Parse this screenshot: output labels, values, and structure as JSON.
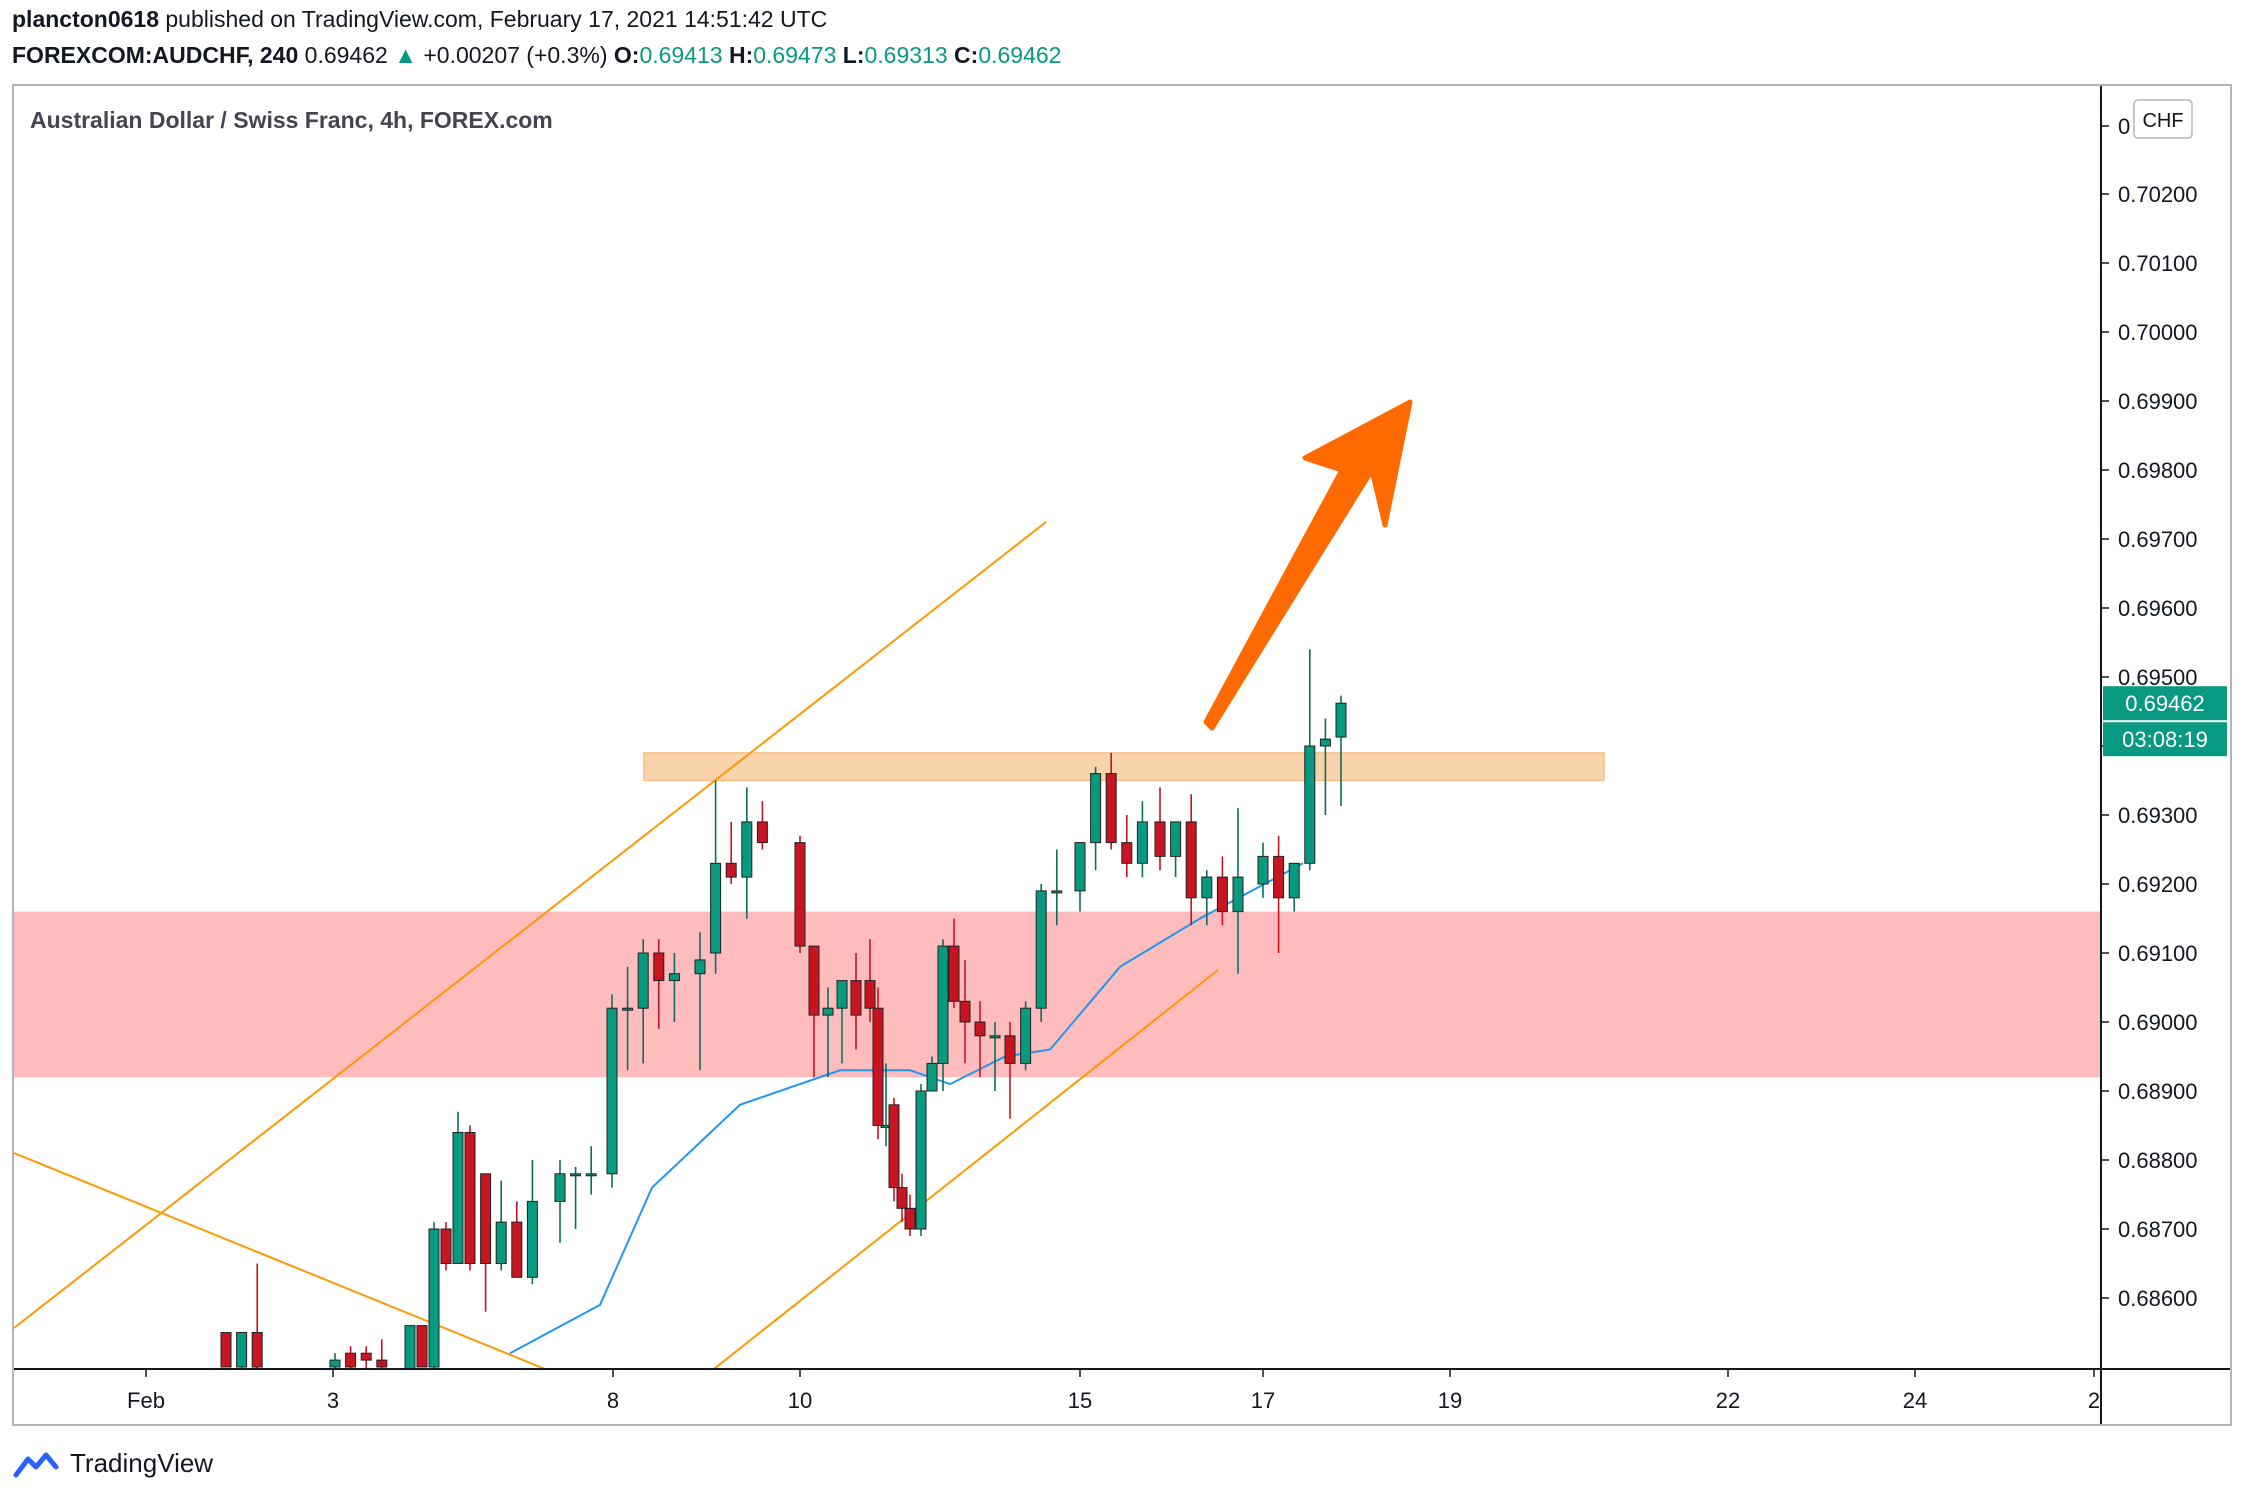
{
  "header": {
    "username": "plancton0618",
    "published_text": "published on TradingView.com, February 17, 2021 14:51:42 UTC",
    "symbol": "FOREXCOM:AUDCHF, 240",
    "last": "0.69462",
    "change_arrow": "▲",
    "change": "+0.00207 (+0.3%)",
    "o_label": "O:",
    "o_value": "0.69413",
    "h_label": "H:",
    "h_value": "0.69473",
    "l_label": "L:",
    "l_value": "0.69313",
    "c_label": "C:",
    "c_value": "0.69462"
  },
  "chart_title": "Australian Dollar / Swiss Franc, 4h, FOREX.com",
  "currency_badge": "CHF",
  "price_label": "0.69462",
  "countdown_label": "03:08:19",
  "footer_brand": "TradingView",
  "colors": {
    "up": "#089981",
    "down": "#c71521",
    "ma": "#2196f3",
    "channel": "#ff9800",
    "arrow": "#ff6a00",
    "resistance_zone": "#f9cfa3",
    "support_zone": "#ffbcbc"
  },
  "chart_data": {
    "type": "candlestick",
    "title": "Australian Dollar / Swiss Franc, 4h, FOREX.com",
    "ylim": [
      0.6851,
      0.7037
    ],
    "y_ticks": [
      "0.68600",
      "0.68700",
      "0.68800",
      "0.68900",
      "0.69000",
      "0.69100",
      "0.69200",
      "0.69300",
      "0.69400",
      "0.69500",
      "0.69600",
      "0.69700",
      "0.69800",
      "0.69900",
      "0.70000",
      "0.70100",
      "0.70200",
      "0"
    ],
    "x_ticks": [
      "Feb",
      "3",
      "8",
      "10",
      "15",
      "17",
      "19",
      "22",
      "24",
      "2"
    ],
    "candles": [
      {
        "date": "Feb 2",
        "o": 0.6855,
        "h": 0.6855,
        "l": 0.685,
        "c": 0.685
      },
      {
        "date": "Feb 2",
        "o": 0.685,
        "h": 0.6855,
        "l": 0.6849,
        "c": 0.6855
      },
      {
        "date": "Feb 2",
        "o": 0.6855,
        "h": 0.6865,
        "l": 0.6849,
        "c": 0.685
      },
      {
        "date": "Feb 3",
        "o": 0.685,
        "h": 0.6852,
        "l": 0.6849,
        "c": 0.6851
      },
      {
        "date": "Feb 3",
        "o": 0.6852,
        "h": 0.6853,
        "l": 0.6849,
        "c": 0.685
      },
      {
        "date": "Feb 3",
        "o": 0.6852,
        "h": 0.6853,
        "l": 0.6849,
        "c": 0.6851
      },
      {
        "date": "Feb 3",
        "o": 0.6851,
        "h": 0.6854,
        "l": 0.6849,
        "c": 0.685
      },
      {
        "date": "Feb 4",
        "o": 0.6849,
        "h": 0.6856,
        "l": 0.6849,
        "c": 0.6856
      },
      {
        "date": "Feb 4",
        "o": 0.6856,
        "h": 0.6856,
        "l": 0.685,
        "c": 0.685
      },
      {
        "date": "Feb 4",
        "o": 0.685,
        "h": 0.6871,
        "l": 0.6849,
        "c": 0.687
      },
      {
        "date": "Feb 4",
        "o": 0.687,
        "h": 0.6871,
        "l": 0.6864,
        "c": 0.6865
      },
      {
        "date": "Feb 4",
        "o": 0.6865,
        "h": 0.6887,
        "l": 0.6865,
        "c": 0.6884
      },
      {
        "date": "Feb 5",
        "o": 0.6884,
        "h": 0.6885,
        "l": 0.6864,
        "c": 0.6865
      },
      {
        "date": "Feb 5",
        "o": 0.6878,
        "h": 0.6878,
        "l": 0.6858,
        "c": 0.6865
      },
      {
        "date": "Feb 5",
        "o": 0.6865,
        "h": 0.6877,
        "l": 0.6864,
        "c": 0.6871
      },
      {
        "date": "Feb 5",
        "o": 0.6871,
        "h": 0.6874,
        "l": 0.6863,
        "c": 0.6863
      },
      {
        "date": "Feb 5",
        "o": 0.6863,
        "h": 0.688,
        "l": 0.6862,
        "c": 0.6874
      },
      {
        "date": "Feb 7",
        "o": 0.6874,
        "h": 0.688,
        "l": 0.6868,
        "c": 0.6878
      },
      {
        "date": "Feb 7",
        "o": 0.6878,
        "h": 0.6879,
        "l": 0.687,
        "c": 0.6878
      },
      {
        "date": "Feb 7",
        "o": 0.6878,
        "h": 0.6882,
        "l": 0.6875,
        "c": 0.6878
      },
      {
        "date": "Feb 8",
        "o": 0.6878,
        "h": 0.6904,
        "l": 0.6876,
        "c": 0.6902
      },
      {
        "date": "Feb 8",
        "o": 0.6902,
        "h": 0.6908,
        "l": 0.6893,
        "c": 0.6902
      },
      {
        "date": "Feb 8",
        "o": 0.6902,
        "h": 0.6912,
        "l": 0.6894,
        "c": 0.691
      },
      {
        "date": "Feb 8",
        "o": 0.691,
        "h": 0.6912,
        "l": 0.6899,
        "c": 0.6906
      },
      {
        "date": "Feb 8",
        "o": 0.6906,
        "h": 0.691,
        "l": 0.69,
        "c": 0.6907
      },
      {
        "date": "Feb 9",
        "o": 0.6907,
        "h": 0.6913,
        "l": 0.6893,
        "c": 0.6909
      },
      {
        "date": "Feb 9",
        "o": 0.691,
        "h": 0.6935,
        "l": 0.6907,
        "c": 0.6923
      },
      {
        "date": "Feb 9",
        "o": 0.6923,
        "h": 0.6929,
        "l": 0.692,
        "c": 0.6921
      },
      {
        "date": "Feb 9",
        "o": 0.6921,
        "h": 0.6934,
        "l": 0.6915,
        "c": 0.6929
      },
      {
        "date": "Feb 9",
        "o": 0.6929,
        "h": 0.6932,
        "l": 0.6925,
        "c": 0.6926
      },
      {
        "date": "Feb 10",
        "o": 0.6926,
        "h": 0.6927,
        "l": 0.691,
        "c": 0.6911
      },
      {
        "date": "Feb 10",
        "o": 0.6911,
        "h": 0.6911,
        "l": 0.6892,
        "c": 0.6901
      },
      {
        "date": "Feb 10",
        "o": 0.6901,
        "h": 0.6905,
        "l": 0.6892,
        "c": 0.6902
      },
      {
        "date": "Feb 10",
        "o": 0.6902,
        "h": 0.6906,
        "l": 0.6894,
        "c": 0.6906
      },
      {
        "date": "Feb 10",
        "o": 0.6906,
        "h": 0.691,
        "l": 0.6896,
        "c": 0.6901
      },
      {
        "date": "Feb 11",
        "o": 0.6906,
        "h": 0.6912,
        "l": 0.69,
        "c": 0.6902
      },
      {
        "date": "Feb 11",
        "o": 0.6902,
        "h": 0.6905,
        "l": 0.6883,
        "c": 0.6885
      },
      {
        "date": "Feb 11",
        "o": 0.6885,
        "h": 0.6894,
        "l": 0.6882,
        "c": 0.6885
      },
      {
        "date": "Feb 11",
        "o": 0.6888,
        "h": 0.6889,
        "l": 0.6874,
        "c": 0.6876
      },
      {
        "date": "Feb 11",
        "o": 0.6876,
        "h": 0.6878,
        "l": 0.6871,
        "c": 0.6873
      },
      {
        "date": "Feb 12",
        "o": 0.6873,
        "h": 0.6875,
        "l": 0.6869,
        "c": 0.687
      },
      {
        "date": "Feb 12",
        "o": 0.687,
        "h": 0.6891,
        "l": 0.6869,
        "c": 0.689
      },
      {
        "date": "Feb 12",
        "o": 0.689,
        "h": 0.6895,
        "l": 0.689,
        "c": 0.6894
      },
      {
        "date": "Feb 12",
        "o": 0.6894,
        "h": 0.6912,
        "l": 0.689,
        "c": 0.6911
      },
      {
        "date": "Feb 12",
        "o": 0.6911,
        "h": 0.6915,
        "l": 0.6902,
        "c": 0.6903
      },
      {
        "date": "Feb 13",
        "o": 0.6903,
        "h": 0.6909,
        "l": 0.6894,
        "c": 0.69
      },
      {
        "date": "Feb 13",
        "o": 0.69,
        "h": 0.6903,
        "l": 0.6892,
        "c": 0.6898
      },
      {
        "date": "Feb 13",
        "o": 0.6898,
        "h": 0.69,
        "l": 0.689,
        "c": 0.6898
      },
      {
        "date": "Feb 14",
        "o": 0.6898,
        "h": 0.69,
        "l": 0.6886,
        "c": 0.6894
      },
      {
        "date": "Feb 14",
        "o": 0.6894,
        "h": 0.6903,
        "l": 0.6893,
        "c": 0.6902
      },
      {
        "date": "Feb 14",
        "o": 0.6902,
        "h": 0.692,
        "l": 0.69,
        "c": 0.6919
      },
      {
        "date": "Feb 14",
        "o": 0.6919,
        "h": 0.6925,
        "l": 0.6914,
        "c": 0.6919
      },
      {
        "date": "Feb 15",
        "o": 0.6919,
        "h": 0.6926,
        "l": 0.6916,
        "c": 0.6926
      },
      {
        "date": "Feb 15",
        "o": 0.6926,
        "h": 0.6937,
        "l": 0.6922,
        "c": 0.6936
      },
      {
        "date": "Feb 15",
        "o": 0.6936,
        "h": 0.6939,
        "l": 0.6925,
        "c": 0.6926
      },
      {
        "date": "Feb 15",
        "o": 0.6926,
        "h": 0.693,
        "l": 0.6921,
        "c": 0.6923
      },
      {
        "date": "Feb 15",
        "o": 0.6923,
        "h": 0.6932,
        "l": 0.6921,
        "c": 0.6929
      },
      {
        "date": "Feb 16",
        "o": 0.6929,
        "h": 0.6934,
        "l": 0.6922,
        "c": 0.6924
      },
      {
        "date": "Feb 16",
        "o": 0.6924,
        "h": 0.6929,
        "l": 0.6921,
        "c": 0.6929
      },
      {
        "date": "Feb 16",
        "o": 0.6929,
        "h": 0.6933,
        "l": 0.6914,
        "c": 0.6918
      },
      {
        "date": "Feb 16",
        "o": 0.6918,
        "h": 0.6922,
        "l": 0.6914,
        "c": 0.6921
      },
      {
        "date": "Feb 16",
        "o": 0.6921,
        "h": 0.6924,
        "l": 0.6914,
        "c": 0.6916
      },
      {
        "date": "Feb 16",
        "o": 0.6916,
        "h": 0.6931,
        "l": 0.6907,
        "c": 0.6921
      },
      {
        "date": "Feb 17",
        "o": 0.692,
        "h": 0.6926,
        "l": 0.6918,
        "c": 0.6924
      },
      {
        "date": "Feb 17",
        "o": 0.6924,
        "h": 0.6927,
        "l": 0.691,
        "c": 0.6918
      },
      {
        "date": "Feb 17",
        "o": 0.6918,
        "h": 0.6923,
        "l": 0.6916,
        "c": 0.6923
      },
      {
        "date": "Feb 17",
        "o": 0.6923,
        "h": 0.6954,
        "l": 0.6922,
        "c": 0.694
      },
      {
        "date": "Feb 17",
        "o": 0.694,
        "h": 0.6944,
        "l": 0.693,
        "c": 0.6941
      },
      {
        "date": "Feb 17",
        "o": 0.69413,
        "h": 0.69473,
        "l": 0.69313,
        "c": 0.69462
      }
    ],
    "moving_average": [
      {
        "date": "Feb 5",
        "value": 0.6852
      },
      {
        "date": "Feb 7",
        "value": 0.6859
      },
      {
        "date": "Feb 8",
        "value": 0.6876
      },
      {
        "date": "Feb 9",
        "value": 0.6888
      },
      {
        "date": "Feb 10",
        "value": 0.6893
      },
      {
        "date": "Feb 11",
        "value": 0.6893
      },
      {
        "date": "Feb 12",
        "value": 0.6891
      },
      {
        "date": "Feb 13",
        "value": 0.6895
      },
      {
        "date": "Feb 14",
        "value": 0.6896
      },
      {
        "date": "Feb 15",
        "value": 0.6908
      },
      {
        "date": "Feb 16",
        "value": 0.6915
      },
      {
        "date": "Feb 17",
        "value": 0.6923
      }
    ],
    "zones": [
      {
        "type": "resistance",
        "low": 0.6935,
        "high": 0.6939
      },
      {
        "type": "support",
        "low": 0.6892,
        "high": 0.6916
      }
    ]
  }
}
